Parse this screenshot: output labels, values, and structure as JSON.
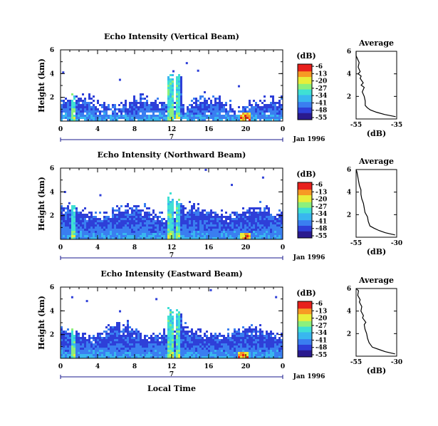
{
  "colors": {
    "scale": [
      "#2a1a8e",
      "#2e3fd8",
      "#3a7ef0",
      "#39b7ef",
      "#3fe0d4",
      "#8cf07c",
      "#e8ee3a",
      "#f79a24",
      "#e8201c"
    ],
    "axis": "#000000",
    "date_rule": "#1a1a8c"
  },
  "chart_data": [
    {
      "type": "heatmap",
      "title": "Echo Intensity (Vertical Beam)",
      "ylabel": "Height (km)",
      "xlim": [
        0,
        24
      ],
      "ylim": [
        0,
        6
      ],
      "x_ticks": [
        "0",
        "4",
        "8",
        "12",
        "16",
        "20",
        "0"
      ],
      "y_ticks": [
        "2",
        "4",
        "6"
      ],
      "date_day": "7",
      "date_month": "Jan 1996",
      "colorbar": {
        "label": "(dB)",
        "ticks": [
          "-6",
          "-13",
          "-20",
          "-27",
          "-34",
          "-41",
          "-48",
          "-55"
        ]
      },
      "echo": {
        "base_top_km": 1.6,
        "columns": [
          {
            "x": 1.3,
            "top_km": 2.1
          },
          {
            "x": 11.8,
            "top_km": 4.0
          },
          {
            "x": 12.6,
            "top_km": 4.0
          }
        ],
        "hot_spot": {
          "x": 19.8,
          "height_km": 0.4
        }
      },
      "profile": {
        "title": "Average",
        "xlabel": "(dB)",
        "x_ticks": [
          "-55",
          "-35"
        ],
        "xlim": [
          -55,
          -35
        ],
        "y_ticks": [
          "2",
          "4",
          "6"
        ],
        "ylim": [
          0,
          6
        ],
        "db": [
          -35.5,
          -41,
          -45,
          -48,
          -49.5,
          -50.5,
          -50.5,
          -51,
          -52,
          -51,
          -52.5,
          -51.5,
          -53,
          -52.5,
          -54,
          -53,
          -54,
          -53.5,
          -54,
          -55,
          -55
        ],
        "height_km": [
          0.2,
          0.4,
          0.6,
          0.8,
          1.0,
          1.2,
          1.6,
          2.0,
          2.4,
          2.8,
          3.0,
          3.2,
          3.6,
          3.8,
          4.0,
          4.2,
          4.6,
          5.0,
          5.2,
          5.6,
          6.0
        ]
      }
    },
    {
      "type": "heatmap",
      "title": "Echo Intensity (Northward Beam)",
      "ylabel": "Height (km)",
      "xlim": [
        0,
        24
      ],
      "ylim": [
        0,
        6
      ],
      "x_ticks": [
        "0",
        "4",
        "8",
        "12",
        "16",
        "20",
        "0"
      ],
      "y_ticks": [
        "2",
        "4",
        "6"
      ],
      "date_day": "7",
      "date_month": "Jan 1996",
      "colorbar": {
        "label": "(dB)",
        "ticks": [
          "-6",
          "-13",
          "-20",
          "-27",
          "-34",
          "-41",
          "-48",
          "-55"
        ]
      },
      "echo": {
        "base_top_km": 2.4,
        "columns": [
          {
            "x": 1.3,
            "top_km": 2.6
          },
          {
            "x": 11.8,
            "top_km": 3.6
          },
          {
            "x": 12.6,
            "top_km": 3.3
          }
        ],
        "hot_spot": {
          "x": 19.8,
          "height_km": 0.3
        }
      },
      "profile": {
        "title": "Average",
        "xlabel": "(dB)",
        "x_ticks": [
          "-55",
          "-30"
        ],
        "xlim": [
          -55,
          -30
        ],
        "y_ticks": [
          "2",
          "4",
          "6"
        ],
        "ylim": [
          0,
          6
        ],
        "db": [
          -31,
          -37,
          -41,
          -44,
          -46.5,
          -47.5,
          -48,
          -49.5,
          -50,
          -50.5,
          -51.5,
          -52,
          -52,
          -53,
          -53.5,
          -54,
          -54.5,
          -55
        ],
        "height_km": [
          0.2,
          0.4,
          0.6,
          0.8,
          1.0,
          1.4,
          1.8,
          2.2,
          2.6,
          3.0,
          3.4,
          3.8,
          4.2,
          4.6,
          5.0,
          5.4,
          5.8,
          6.0
        ]
      }
    },
    {
      "type": "heatmap",
      "title": "Echo Intensity (Eastward Beam)",
      "ylabel": "Height (km)",
      "xlabel": "Local Time",
      "xlim": [
        0,
        24
      ],
      "ylim": [
        0,
        6
      ],
      "x_ticks": [
        "0",
        "4",
        "8",
        "12",
        "16",
        "20",
        "0"
      ],
      "y_ticks": [
        "2",
        "4",
        "6"
      ],
      "date_day": "7",
      "date_month": "Jan 1996",
      "colorbar": {
        "label": "(dB)",
        "ticks": [
          "-6",
          "-13",
          "-20",
          "-27",
          "-34",
          "-41",
          "-48",
          "-55"
        ]
      },
      "echo": {
        "base_top_km": 2.3,
        "columns": [
          {
            "x": 1.3,
            "top_km": 2.4
          },
          {
            "x": 11.8,
            "top_km": 4.0
          },
          {
            "x": 12.6,
            "top_km": 3.9
          }
        ],
        "hot_spot": {
          "x": 19.6,
          "height_km": 0.3
        }
      },
      "profile": {
        "title": "Average",
        "xlabel": "(dB)",
        "x_ticks": [
          "-55",
          "-30"
        ],
        "xlim": [
          -55,
          -30
        ],
        "y_ticks": [
          "2",
          "4",
          "6"
        ],
        "ylim": [
          0,
          6
        ],
        "db": [
          -31,
          -37,
          -41,
          -45,
          -46,
          -47,
          -48,
          -48.5,
          -49.5,
          -50,
          -49,
          -51,
          -50.5,
          -52,
          -51.5,
          -53,
          -52.5,
          -54,
          -53.5,
          -55
        ],
        "height_km": [
          0.2,
          0.4,
          0.6,
          0.8,
          1.0,
          1.2,
          1.6,
          2.0,
          2.4,
          2.8,
          3.0,
          3.4,
          3.6,
          4.0,
          4.4,
          4.8,
          5.0,
          5.4,
          5.8,
          6.0
        ]
      }
    }
  ]
}
